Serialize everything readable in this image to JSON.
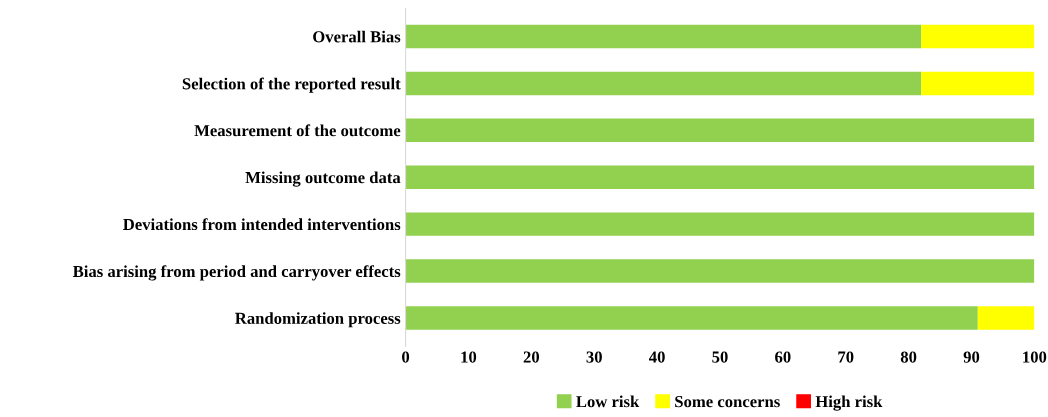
{
  "chart_data": {
    "type": "bar",
    "orientation": "horizontal",
    "stacked": true,
    "categories": [
      "Overall Bias",
      "Selection of the reported result",
      "Measurement of the outcome",
      "Missing outcome data",
      "Deviations from intended interventions",
      "Bias arising from period and carryover effects",
      "Randomization process"
    ],
    "series": [
      {
        "name": "Low risk",
        "color": "#92d050",
        "values": [
          82,
          82,
          100,
          100,
          100,
          100,
          91
        ]
      },
      {
        "name": "Some concerns",
        "color": "#ffff00",
        "values": [
          18,
          18,
          0,
          0,
          0,
          0,
          9
        ]
      },
      {
        "name": "High risk",
        "color": "#ff0000",
        "values": [
          0,
          0,
          0,
          0,
          0,
          0,
          0
        ]
      }
    ],
    "xlim": [
      0,
      100
    ],
    "xticks": [
      0,
      10,
      20,
      30,
      40,
      50,
      60,
      70,
      80,
      90,
      100
    ],
    "grid": false,
    "legend": "bottom"
  }
}
